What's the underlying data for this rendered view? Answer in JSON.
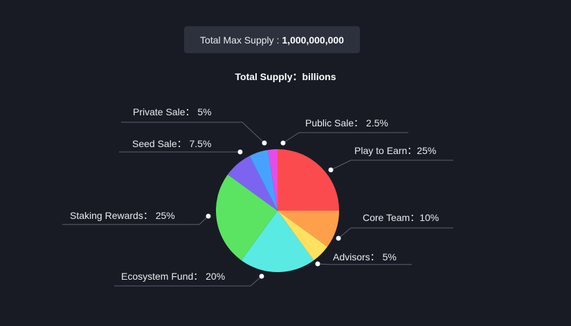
{
  "header": {
    "max_supply_label": "Total Max Supply :",
    "max_supply_value": "1,000,000,000",
    "total_supply_label": "Total Supply：billions"
  },
  "chart_data": {
    "type": "pie",
    "start_angle_deg": 0,
    "direction": "clockwise",
    "slices": [
      {
        "name": "Play to Earn",
        "value": 25,
        "label": "Play to Earn：25%",
        "color": "#fb4b4e"
      },
      {
        "name": "Core Team",
        "value": 10,
        "label": "Core Team：10%",
        "color": "#fea04b"
      },
      {
        "name": "Advisors",
        "value": 5,
        "label": "Advisors： 5%",
        "color": "#ffe160"
      },
      {
        "name": "Ecosystem Fund",
        "value": 20,
        "label": "Ecosystem Fund： 20%",
        "color": "#5aeae4"
      },
      {
        "name": "Staking Rewards",
        "value": 25,
        "label": "Staking Rewards： 25%",
        "color": "#5ae462"
      },
      {
        "name": "Seed Sale",
        "value": 7.5,
        "label": "Seed Sale： 7.5%",
        "color": "#7d64f0"
      },
      {
        "name": "Private Sale",
        "value": 5,
        "label": "Private Sale： 5%",
        "color": "#47a2ff"
      },
      {
        "name": "Public Sale",
        "value": 2.5,
        "label": "Public Sale： 2.5%",
        "color": "#e84ce8"
      }
    ]
  }
}
